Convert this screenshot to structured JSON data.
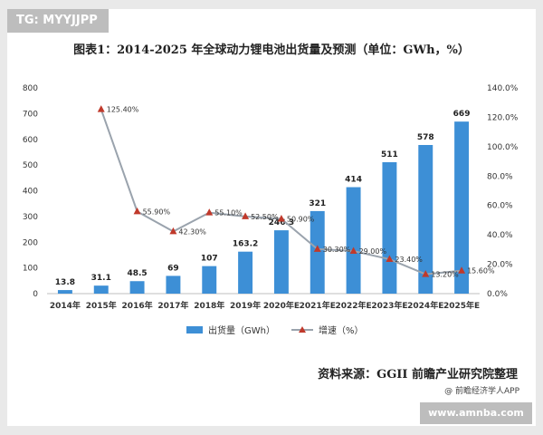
{
  "badges": {
    "top_left": "TG: MYYJJPP",
    "bottom_right": "www.amnba.com"
  },
  "title": "图表1：2014-2025 年全球动力锂电池出货量及预测（单位：GWh，%）",
  "source": "资料来源：GGII 前瞻产业研究院整理",
  "credit": "@ 前瞻经济学人APP",
  "colors": {
    "bar": "#3d8fd6",
    "line": "#9aa3ad",
    "marker": "#c0392b",
    "badge": "#bdbdbd"
  },
  "chart_data": {
    "type": "bar",
    "title": "图表1：2014-2025 年全球动力锂电池出货量及预测（单位：GWh，%）",
    "categories": [
      "2014年",
      "2015年",
      "2016年",
      "2017年",
      "2018年",
      "2019年",
      "2020年E",
      "2021年E",
      "2022年E",
      "2023年E",
      "2024年E",
      "2025年E"
    ],
    "series": [
      {
        "name": "出货量（GWh）",
        "type": "bar",
        "axis": "left",
        "values": [
          13.8,
          31.1,
          48.5,
          69,
          107,
          163.2,
          246.3,
          321,
          414,
          511,
          578,
          669
        ],
        "labels": [
          "13.8",
          "31.1",
          "48.5",
          "69",
          "107",
          "163.2",
          "246.3",
          "321",
          "414",
          "511",
          "578",
          "669"
        ]
      },
      {
        "name": "增速（%）",
        "type": "line",
        "axis": "right",
        "values": [
          null,
          125.4,
          55.9,
          42.3,
          55.1,
          52.5,
          50.9,
          30.3,
          29.0,
          23.4,
          13.2,
          15.6
        ],
        "labels": [
          "",
          "125.40%",
          "55.90%",
          "42.30%",
          "55.10%",
          "52.50%",
          "50.90%",
          "30.30%",
          "29.00%",
          "23.40%",
          "13.20%",
          "15.60%"
        ]
      }
    ],
    "left_axis": {
      "range": [
        0,
        800
      ],
      "ticks": [
        0,
        100,
        200,
        300,
        400,
        500,
        600,
        700,
        800
      ],
      "tick_labels": [
        "0",
        "100",
        "200",
        "300",
        "400",
        "500",
        "600",
        "700",
        "800"
      ]
    },
    "right_axis": {
      "range": [
        0,
        140
      ],
      "ticks": [
        0,
        20,
        40,
        60,
        80,
        100,
        120,
        140
      ],
      "tick_labels": [
        "0.0%",
        "20.0%",
        "40.0%",
        "60.0%",
        "80.0%",
        "100.0%",
        "120.0%",
        "140.0%"
      ]
    },
    "legend": [
      "出货量（GWh）",
      "增速（%）"
    ],
    "grid": false
  }
}
